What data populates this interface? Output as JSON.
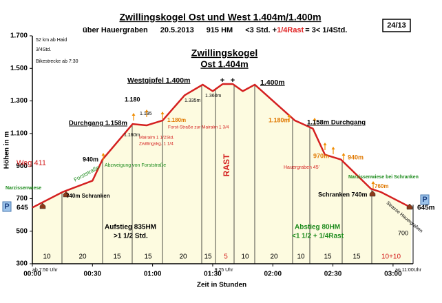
{
  "chart_data": {
    "type": "area",
    "title": "Zwillingskogel Ost und West 1.404m/1.400m",
    "subtitle_parts": [
      {
        "text": "über Hauergraben",
        "color": "#000000"
      },
      {
        "text": "20.5.2013",
        "color": "#000000"
      },
      {
        "text": "915 HM",
        "color": "#000000"
      },
      {
        "text": "<3 Std. +",
        "color": "#000000"
      },
      {
        "text": "1/4Rast",
        "color": "#e02020"
      },
      {
        "text": "= 3< 1/4Std.",
        "color": "#000000"
      }
    ],
    "page_number": "24/13",
    "x_label": "Zeit in Stunden",
    "y_label": "Höhen in m",
    "x": [
      0,
      15,
      30,
      35,
      50,
      57,
      65,
      76,
      85,
      90,
      95,
      100,
      105,
      111,
      131,
      135,
      140,
      146,
      154,
      169,
      174,
      189
    ],
    "series": [
      {
        "color": "#d42020",
        "values": [
          645,
          740,
          810,
          940,
          1158,
          1150,
          1180,
          1335,
          1400,
          1360,
          1404,
          1404,
          1360,
          1400,
          1180,
          1158,
          1130,
          970,
          940,
          760,
          740,
          645
        ]
      }
    ],
    "fill_color": "#fdfbe0",
    "xlim": [
      0,
      190
    ],
    "xticks": [
      {
        "value": 0,
        "label": "00:00"
      },
      {
        "value": 30,
        "label": "00:30"
      },
      {
        "value": 60,
        "label": "01:00"
      },
      {
        "value": 90,
        "label": "01:30"
      },
      {
        "value": 120,
        "label": "02:00"
      },
      {
        "value": 150,
        "label": "02:30"
      },
      {
        "value": 180,
        "label": "03:00"
      }
    ],
    "ylim": [
      300,
      1700
    ],
    "yticks": [
      300,
      500,
      700,
      900,
      {
        "value": 1100,
        "label": "1.100"
      },
      {
        "value": 1300,
        "label": "1.300"
      },
      {
        "value": 1500,
        "label": "1.500"
      },
      {
        "value": 1700,
        "label": "1.700"
      }
    ],
    "segments": [
      "10",
      "20",
      "15",
      "15",
      "20",
      "15",
      "5",
      "10",
      "20",
      "10",
      "15",
      "15",
      "10+10"
    ],
    "time_notes": [
      "ab 7:50 Uhr",
      "9:25 Uhr",
      "an 11:00Uhr"
    ],
    "parking": [
      "P",
      "P"
    ],
    "annotations": [
      "52 km ab Haid",
      "3/4Std.",
      "Bikestrecke ab 7:30",
      "Weg 411",
      "Narzissenwiese",
      "645",
      "740m Schranken",
      "Forststraße",
      "Abzweigung von Forststraße",
      "940m",
      "Durchgang 1.158m",
      "1.160m",
      "Mairalm 1 1/2Std.",
      "Zwillingskg. 1 1/4",
      "1.180",
      "1.195",
      "1.180m",
      "Forst-Straße zur Mairalm 1 3/4",
      "1.335m",
      "Westgipfel 1.400m",
      "1.360m",
      "Zwillingskogel",
      "Ost 1.404m",
      "RAST",
      "1.400m",
      "1.180m",
      "1.158m Durchgang",
      "970m",
      "940m",
      "Hauergraben 45'",
      "Narzissenwiese bei Schranken",
      "760m",
      "Schranken 740m",
      "Strasse Hauergraben",
      "645m",
      "Aufstieg 835HM",
      ">1 1/2 Std.",
      "Abstieg 80HM",
      "<1 1/2 + 1/4Rast",
      "700",
      "+",
      "+"
    ]
  }
}
